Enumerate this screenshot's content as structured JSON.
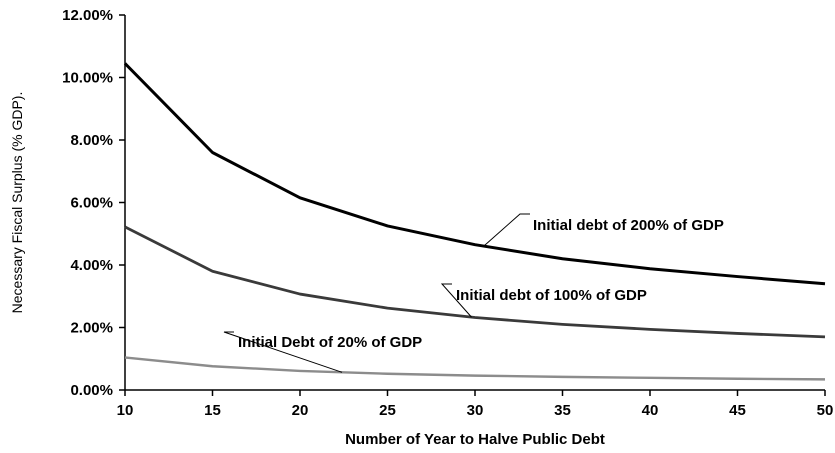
{
  "chart_data": {
    "type": "line",
    "title": "",
    "xlabel": "Number of Year to Halve Public Debt",
    "ylabel": "Necessary Fiscal Surplus (% GDP).",
    "x": [
      10,
      15,
      20,
      25,
      30,
      35,
      40,
      45,
      50
    ],
    "xticks": [
      "10",
      "15",
      "20",
      "25",
      "30",
      "35",
      "40",
      "45",
      "50"
    ],
    "yticks": [
      "0.00%",
      "2.00%",
      "4.00%",
      "6.00%",
      "8.00%",
      "10.00%",
      "12.00%"
    ],
    "xlim": [
      10,
      50
    ],
    "ylim": [
      0,
      12
    ],
    "grid": false,
    "legend": "none",
    "series": [
      {
        "name": "Initial debt of 200% of GDP",
        "color": "#000000",
        "values": [
          10.45,
          7.6,
          6.15,
          5.25,
          4.65,
          4.2,
          3.88,
          3.63,
          3.4
        ]
      },
      {
        "name": "Initial debt of 100% of GDP",
        "color": "#3a3a3a",
        "values": [
          5.22,
          3.8,
          3.07,
          2.62,
          2.32,
          2.1,
          1.94,
          1.81,
          1.7
        ]
      },
      {
        "name": "Initial Debt of 20% of GDP",
        "color": "#8c8c8c",
        "values": [
          1.04,
          0.76,
          0.61,
          0.52,
          0.46,
          0.42,
          0.39,
          0.36,
          0.34
        ]
      }
    ]
  }
}
